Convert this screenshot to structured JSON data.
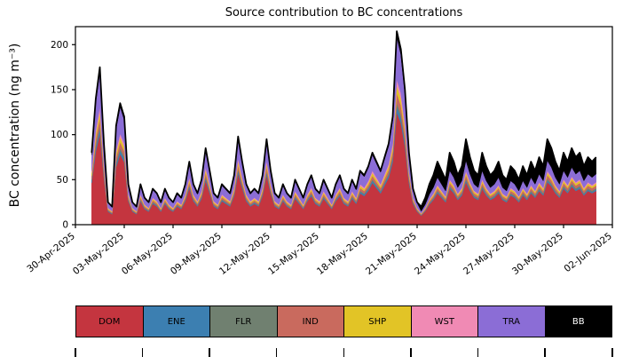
{
  "chart_data": {
    "type": "area",
    "stacked": true,
    "title": "Source contribution to BC concentrations",
    "xlabel": "",
    "ylabel": "BC concentration (ng m⁻³)",
    "ylim": [
      0,
      220
    ],
    "yticks": [
      0,
      50,
      100,
      150,
      200
    ],
    "x_axis_range_days": [
      0,
      33
    ],
    "x_tick_days": [
      0,
      3,
      6,
      9,
      12,
      15,
      18,
      21,
      24,
      27,
      30,
      33
    ],
    "x_tick_labels": [
      "30-Apr-2025",
      "03-May-2025",
      "06-May-2025",
      "09-May-2025",
      "12-May-2025",
      "15-May-2025",
      "18-May-2025",
      "21-May-2025",
      "24-May-2025",
      "27-May-2025",
      "30-May-2025",
      "02-Jun-2025"
    ],
    "x_start_day": 1.0,
    "x_step_days": 0.25,
    "totals": [
      80,
      140,
      175,
      90,
      25,
      20,
      110,
      135,
      120,
      45,
      25,
      20,
      45,
      30,
      25,
      40,
      35,
      25,
      40,
      30,
      25,
      35,
      30,
      45,
      70,
      45,
      35,
      50,
      85,
      60,
      35,
      30,
      45,
      40,
      35,
      55,
      98,
      70,
      45,
      35,
      40,
      35,
      55,
      95,
      60,
      35,
      30,
      45,
      35,
      30,
      50,
      40,
      30,
      45,
      55,
      40,
      35,
      50,
      40,
      30,
      45,
      55,
      40,
      35,
      50,
      40,
      60,
      55,
      65,
      80,
      70,
      60,
      75,
      90,
      120,
      215,
      195,
      150,
      80,
      40,
      25,
      20,
      30,
      45,
      55,
      70,
      60,
      50,
      80,
      70,
      55,
      65,
      95,
      75,
      60,
      55,
      80,
      65,
      55,
      60,
      70,
      55,
      50,
      65,
      60,
      50,
      65,
      55,
      70,
      60,
      75,
      65,
      95,
      85,
      70,
      60,
      80,
      70,
      85,
      75,
      80,
      65,
      75,
      70,
      75
    ],
    "regime_change_day": 21.25,
    "series": [
      {
        "name": "DOM",
        "color": "#c4353f",
        "share_pre": 0.58,
        "share_post": 0.5
      },
      {
        "name": "ENE",
        "color": "#3c7fb1",
        "share_pre": 0.03,
        "share_post": 0.02
      },
      {
        "name": "FLR",
        "color": "#708070",
        "share_pre": 0.02,
        "share_post": 0.02
      },
      {
        "name": "IND",
        "color": "#c96a5e",
        "share_pre": 0.05,
        "share_post": 0.04
      },
      {
        "name": "SHP",
        "color": "#e2c426",
        "share_pre": 0.04,
        "share_post": 0.03
      },
      {
        "name": "WST",
        "color": "#f08ab4",
        "share_pre": 0.03,
        "share_post": 0.02
      },
      {
        "name": "TRA",
        "color": "#8b6dd6",
        "share_pre": 0.22,
        "share_post": 0.12
      },
      {
        "name": "BB",
        "color": "#000000",
        "share_pre": 0.03,
        "share_post": 0.25
      }
    ],
    "legend": {
      "position": "bottom",
      "entries": [
        "DOM",
        "ENE",
        "FLR",
        "IND",
        "SHP",
        "WST",
        "TRA",
        "BB"
      ]
    },
    "grid": false,
    "total_line_color": "#000000"
  }
}
